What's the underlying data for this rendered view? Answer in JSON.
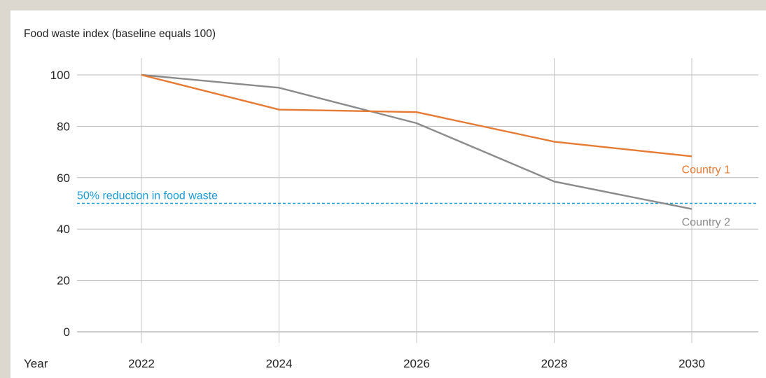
{
  "chart_data": {
    "type": "line",
    "ylabel": "Food waste index (baseline equals 100)",
    "xlabel": "Year",
    "x": [
      2022,
      2024,
      2026,
      2028,
      2030
    ],
    "xlim": [
      2021,
      2031
    ],
    "ylim": [
      0,
      100
    ],
    "yticks": [
      0,
      20,
      40,
      60,
      80,
      100
    ],
    "grid": true,
    "series": [
      {
        "name": "Country 1",
        "color": "#e67a32",
        "values": [
          100,
          86.5,
          85.5,
          74,
          68.3
        ]
      },
      {
        "name": "Country 2",
        "color": "#8a8a8a",
        "values": [
          100,
          95,
          81.2,
          58.5,
          47.8
        ]
      }
    ],
    "reference_line": {
      "label": "50% reduction in food waste",
      "y": 50,
      "color": "#1a9bd8",
      "style": "dashed"
    }
  }
}
